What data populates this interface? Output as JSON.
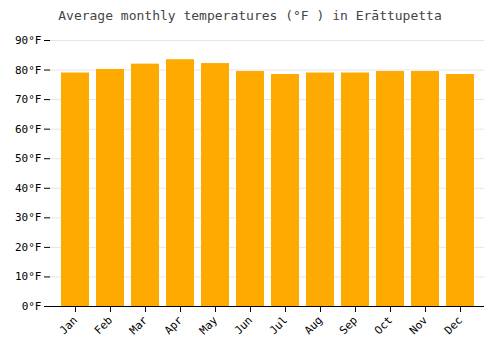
{
  "chart_data": {
    "type": "bar",
    "title": "Average monthly temperatures (°F ) in Erāttupetta",
    "categories": [
      "Jan",
      "Feb",
      "Mar",
      "Apr",
      "May",
      "Jun",
      "Jul",
      "Aug",
      "Sep",
      "Oct",
      "Nov",
      "Dec"
    ],
    "values": [
      79,
      80.2,
      82,
      83.5,
      82.2,
      79.5,
      78.5,
      79,
      79,
      79.5,
      79.5,
      78.5
    ],
    "color": "#FFAA00",
    "ylim": [
      0,
      90
    ],
    "yticks": [
      {
        "value": 0,
        "label": "0°F"
      },
      {
        "value": 10,
        "label": "10°F"
      },
      {
        "value": 20,
        "label": "20°F"
      },
      {
        "value": 30,
        "label": "30°F"
      },
      {
        "value": 40,
        "label": "40°F"
      },
      {
        "value": 50,
        "label": "50°F"
      },
      {
        "value": 60,
        "label": "60°F"
      },
      {
        "value": 70,
        "label": "70°F"
      },
      {
        "value": 80,
        "label": "80°F"
      },
      {
        "value": 90,
        "label": "90°F"
      }
    ],
    "grid": true
  }
}
